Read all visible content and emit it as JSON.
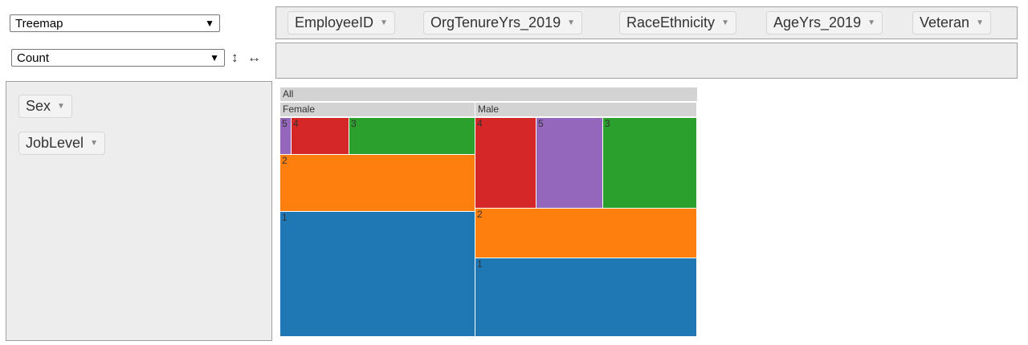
{
  "controls": {
    "renderer": "Treemap",
    "aggregator": "Count",
    "sort_rows_icon": "vertical-arrow-icon",
    "sort_cols_icon": "horizontal-arrow-icon"
  },
  "unused_attributes": [
    {
      "label": "EmployeeID"
    },
    {
      "label": "OrgTenureYrs_2019"
    },
    {
      "label": "RaceEthnicity"
    },
    {
      "label": "AgeYrs_2019"
    },
    {
      "label": "Veteran"
    }
  ],
  "row_attributes": [
    {
      "label": "Sex"
    },
    {
      "label": "JobLevel"
    }
  ],
  "chart_data": {
    "type": "treemap",
    "root": "All",
    "groups": [
      {
        "name": "Female",
        "items": [
          {
            "name": "5",
            "value": 1
          },
          {
            "name": "4",
            "value": 5
          },
          {
            "name": "3",
            "value": 11
          },
          {
            "name": "2",
            "value": 26
          },
          {
            "name": "1",
            "value": 57
          }
        ]
      },
      {
        "name": "Male",
        "items": [
          {
            "name": "4",
            "value": 13
          },
          {
            "name": "5",
            "value": 14
          },
          {
            "name": "3",
            "value": 20
          },
          {
            "name": "2",
            "value": 26
          },
          {
            "name": "1",
            "value": 41
          }
        ]
      }
    ],
    "colors": {
      "1": "#1f77b4",
      "2": "#ff7f0e",
      "3": "#2ca02c",
      "4": "#d62728",
      "5": "#9467bd"
    },
    "header_color": "#d3d3d3"
  }
}
